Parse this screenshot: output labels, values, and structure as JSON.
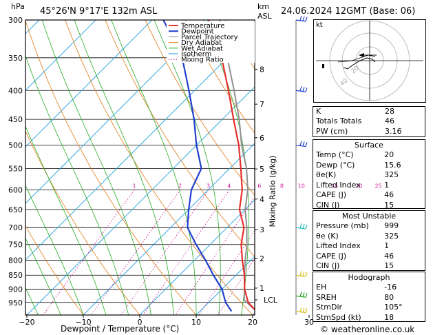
{
  "header": {
    "pressure_unit": "hPa",
    "location": "45°26'N  9°17'E  132m  ASL",
    "height_unit_top": "km",
    "height_unit_bottom": "ASL",
    "timestamp": "24.06.2024  12GMT  (Base: 06)"
  },
  "chart_data": {
    "type": "skew-t",
    "xlabel": "Dewpoint / Temperature (°C)",
    "ylabel_right": "Mixing Ratio (g/kg)",
    "ylabel_left": "hPa",
    "y_scale": "log",
    "xlim": [
      -40,
      40
    ],
    "pressure_levels": [
      300,
      350,
      400,
      450,
      500,
      550,
      600,
      650,
      700,
      750,
      800,
      850,
      900,
      950
    ],
    "x_ticks": [
      -40,
      -30,
      -20,
      -10,
      0,
      10,
      20,
      30
    ],
    "km_ticks": [
      {
        "km": "8",
        "p": 367
      },
      {
        "km": "7",
        "p": 423
      },
      {
        "km": "6",
        "p": 485
      },
      {
        "km": "5",
        "p": 551
      },
      {
        "km": "4",
        "p": 623
      },
      {
        "km": "3",
        "p": 706
      },
      {
        "km": "2",
        "p": 794
      },
      {
        "km": "1",
        "p": 896
      }
    ],
    "lcl": {
      "label": "LCL",
      "p": 940
    },
    "mixing_ratio_labels": [
      "1",
      "2",
      "3",
      "4",
      "6",
      "8",
      "10",
      "15",
      "20",
      "25"
    ],
    "mixing_ratio_values": [
      1,
      2,
      3,
      4,
      6,
      8,
      10,
      15,
      20,
      25
    ],
    "legend": [
      "Temperature",
      "Dewpoint",
      "Parcel Trajectory",
      "Dry Adiabat",
      "Wet Adiabat",
      "Isotherm",
      "Mixing Ratio"
    ],
    "colors": {
      "temperature": "#e8302e",
      "dewpoint": "#1f3fd0",
      "parcel": "#909090",
      "dry_adiabat": "#e07a10",
      "wet_adiabat": "#22aa22",
      "isotherm": "#22a0e0",
      "mixing_ratio": "#d0209a"
    },
    "temperature_profile": [
      {
        "p": 985,
        "t": 20
      },
      {
        "p": 950,
        "t": 17
      },
      {
        "p": 900,
        "t": 14
      },
      {
        "p": 850,
        "t": 11.5
      },
      {
        "p": 800,
        "t": 8.5
      },
      {
        "p": 750,
        "t": 5.5
      },
      {
        "p": 700,
        "t": 3
      },
      {
        "p": 650,
        "t": -1
      },
      {
        "p": 600,
        "t": -4
      },
      {
        "p": 550,
        "t": -8
      },
      {
        "p": 500,
        "t": -12.5
      },
      {
        "p": 450,
        "t": -18
      },
      {
        "p": 400,
        "t": -24
      },
      {
        "p": 350,
        "t": -31
      },
      {
        "p": 300,
        "t": -40
      }
    ],
    "dewpoint_profile": [
      {
        "p": 985,
        "t": 15.6
      },
      {
        "p": 950,
        "t": 13
      },
      {
        "p": 900,
        "t": 10
      },
      {
        "p": 850,
        "t": 6
      },
      {
        "p": 800,
        "t": 2
      },
      {
        "p": 750,
        "t": -2.5
      },
      {
        "p": 700,
        "t": -7
      },
      {
        "p": 650,
        "t": -10
      },
      {
        "p": 600,
        "t": -13
      },
      {
        "p": 550,
        "t": -15
      },
      {
        "p": 500,
        "t": -20
      },
      {
        "p": 450,
        "t": -25
      },
      {
        "p": 400,
        "t": -31
      },
      {
        "p": 350,
        "t": -38
      },
      {
        "p": 300,
        "t": -48
      }
    ],
    "parcel_profile": [
      {
        "p": 985,
        "t": 20
      },
      {
        "p": 940,
        "t": 15.8
      },
      {
        "p": 900,
        "t": 14
      },
      {
        "p": 850,
        "t": 11.5
      },
      {
        "p": 800,
        "t": 9
      },
      {
        "p": 750,
        "t": 6.5
      },
      {
        "p": 700,
        "t": 3.5
      },
      {
        "p": 650,
        "t": 0
      },
      {
        "p": 600,
        "t": -3
      },
      {
        "p": 550,
        "t": -7
      },
      {
        "p": 500,
        "t": -12
      },
      {
        "p": 450,
        "t": -17
      },
      {
        "p": 400,
        "t": -23
      },
      {
        "p": 350,
        "t": -30
      },
      {
        "p": 300,
        "t": -38
      }
    ],
    "wind_barbs": [
      {
        "p": 300,
        "color": "#1f3fd0"
      },
      {
        "p": 400,
        "color": "#1f3fd0"
      },
      {
        "p": 500,
        "color": "#1f3fd0"
      },
      {
        "p": 700,
        "color": "#20c0c0"
      },
      {
        "p": 850,
        "color": "#d8c020"
      },
      {
        "p": 925,
        "color": "#20a020"
      },
      {
        "p": 985,
        "color": "#d8c020"
      }
    ]
  },
  "hodograph": {
    "unit": "kt",
    "ring_labels": [
      "20",
      "40"
    ]
  },
  "indices": [
    {
      "k": "K",
      "v": "28"
    },
    {
      "k": "Totals Totals",
      "v": "46"
    },
    {
      "k": "PW (cm)",
      "v": "3.16"
    }
  ],
  "surface": {
    "title": "Surface",
    "rows": [
      {
        "k": "Temp (°C)",
        "v": "20"
      },
      {
        "k": "Dewp (°C)",
        "v": "15.6"
      },
      {
        "k": "θe(K)",
        "v": "325"
      },
      {
        "k": "Lifted Index",
        "v": "1"
      },
      {
        "k": "CAPE (J)",
        "v": "46"
      },
      {
        "k": "CIN (J)",
        "v": "15"
      }
    ]
  },
  "most_unstable": {
    "title": "Most Unstable",
    "rows": [
      {
        "k": "Pressure (mb)",
        "v": "999"
      },
      {
        "k": "θe (K)",
        "v": "325"
      },
      {
        "k": "Lifted Index",
        "v": "1"
      },
      {
        "k": "CAPE (J)",
        "v": "46"
      },
      {
        "k": "CIN (J)",
        "v": "15"
      }
    ]
  },
  "hodograph_box": {
    "title": "Hodograph",
    "rows": [
      {
        "k": "EH",
        "v": "-16"
      },
      {
        "k": "SREH",
        "v": "80"
      },
      {
        "k": "StmDir",
        "v": "105°"
      },
      {
        "k": "StmSpd (kt)",
        "v": "18"
      }
    ]
  },
  "footer": {
    "credit": "© weatheronline.co.uk"
  }
}
